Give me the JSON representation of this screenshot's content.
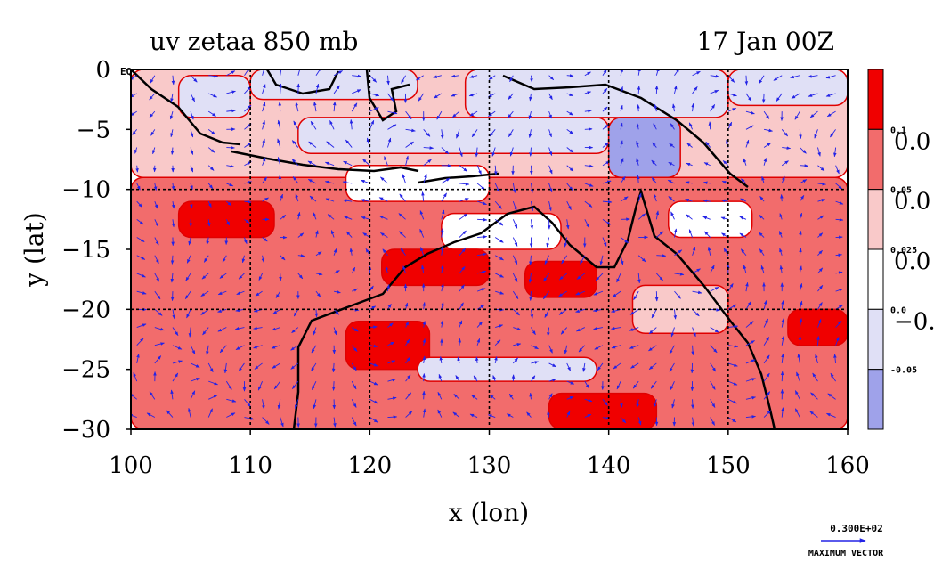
{
  "chart_data": {
    "type": "heatmap",
    "title_left": "uv zetaa 850 mb",
    "title_right": "17 Jan 00Z",
    "xlabel": "x (lon)",
    "ylabel": "y (lat)",
    "xlim": [
      100,
      160
    ],
    "ylim": [
      -30,
      0
    ],
    "x_ticks": [
      100,
      110,
      120,
      130,
      140,
      150,
      160
    ],
    "y_ticks": [
      0,
      -5,
      -10,
      -15,
      -20,
      -25,
      -30
    ],
    "x_tick_labels": [
      "100",
      "110",
      "120",
      "130",
      "140",
      "150",
      "160"
    ],
    "y_tick_labels": [
      "0",
      "−5",
      "−10",
      "−15",
      "−20",
      "−25",
      "−30"
    ],
    "gridlines_lon": [
      110,
      120,
      130,
      140,
      150
    ],
    "gridlines_lat": [
      -10,
      -20
    ],
    "corner_label": "EQ",
    "colorbar": {
      "levels": [
        {
          "color": "#f00000",
          "label": "0.1"
        },
        {
          "color": "#f26c6c",
          "label": "0.05"
        },
        {
          "color": "#f9c9c9",
          "label": "0.025"
        },
        {
          "color": "#ffffff",
          "label": "0.0"
        },
        {
          "color": "#e0e0f6",
          "label": "-0.05"
        },
        {
          "color": "#9fa2ea",
          "label": ""
        }
      ],
      "big_labels": [
        "0.0",
        "0.0",
        "0.0",
        "−0."
      ]
    },
    "vector_reference": {
      "value_label": "0.300E+02",
      "caption": "MAXIMUM VECTOR"
    },
    "field_blobs": [
      {
        "lon": 100,
        "lat": -30,
        "lon2": 160,
        "lat2": -9,
        "level": 1
      },
      {
        "lon": 100,
        "lat": -9,
        "lon2": 160,
        "lat2": 0,
        "level": 2
      },
      {
        "lon": 104,
        "lat": -4,
        "lon2": 110,
        "lat2": -0.5,
        "level": 4
      },
      {
        "lon": 110,
        "lat": -2.5,
        "lon2": 124,
        "lat2": 0,
        "level": 4
      },
      {
        "lon": 114,
        "lat": -7,
        "lon2": 140,
        "lat2": -4,
        "level": 4
      },
      {
        "lon": 128,
        "lat": -4,
        "lon2": 150,
        "lat2": 0,
        "level": 4
      },
      {
        "lon": 150,
        "lat": -3,
        "lon2": 160,
        "lat2": 0,
        "level": 4
      },
      {
        "lon": 140,
        "lat": -9,
        "lon2": 146,
        "lat2": -4,
        "level": 5
      },
      {
        "lon": 118,
        "lat": -11,
        "lon2": 130,
        "lat2": -8,
        "level": 3
      },
      {
        "lon": 126,
        "lat": -15,
        "lon2": 136,
        "lat2": -12,
        "level": 3
      },
      {
        "lon": 121,
        "lat": -18,
        "lon2": 130,
        "lat2": -15,
        "level": 0
      },
      {
        "lon": 133,
        "lat": -19,
        "lon2": 139,
        "lat2": -16,
        "level": 0
      },
      {
        "lon": 118,
        "lat": -25,
        "lon2": 125,
        "lat2": -21,
        "level": 0
      },
      {
        "lon": 135,
        "lat": -30,
        "lon2": 144,
        "lat2": -27,
        "level": 0
      },
      {
        "lon": 124,
        "lat": -26,
        "lon2": 139,
        "lat2": -24,
        "level": 4
      },
      {
        "lon": 142,
        "lat": -22,
        "lon2": 150,
        "lat2": -18,
        "level": 2
      },
      {
        "lon": 145,
        "lat": -14,
        "lon2": 152,
        "lat2": -11,
        "level": 3
      },
      {
        "lon": 104,
        "lat": -14,
        "lon2": 112,
        "lat2": -11,
        "level": 0
      },
      {
        "lon": 155,
        "lat": -23,
        "lon2": 160,
        "lat2": -20,
        "level": 0
      }
    ]
  }
}
